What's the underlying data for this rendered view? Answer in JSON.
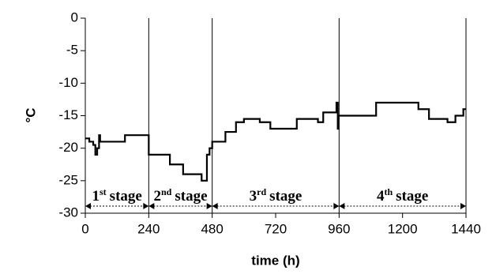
{
  "chart_data": {
    "type": "line",
    "xlabel": "time (h)",
    "ylabel": "°C",
    "x": [
      0,
      15,
      15,
      30,
      30,
      38,
      38,
      45,
      45,
      52,
      52,
      56,
      56,
      150,
      150,
      240,
      240,
      320,
      320,
      370,
      370,
      440,
      440,
      460,
      460,
      470,
      470,
      480,
      480,
      530,
      530,
      570,
      570,
      600,
      600,
      660,
      660,
      700,
      700,
      800,
      800,
      880,
      880,
      900,
      900,
      950,
      950,
      955,
      955,
      958,
      958,
      1100,
      1100,
      1260,
      1260,
      1300,
      1300,
      1370,
      1370,
      1400,
      1400,
      1430,
      1430,
      1440
    ],
    "series": [
      {
        "color": "#000000",
        "values": [
          -18.5,
          -18.5,
          -19,
          -19,
          -19.5,
          -19.5,
          -21,
          -21,
          -20,
          -20,
          -18,
          -18,
          -19,
          -19,
          -18,
          -18,
          -21,
          -21,
          -22.5,
          -22.5,
          -24,
          -24,
          -25,
          -25,
          -21,
          -21,
          -20,
          -20,
          -19,
          -19,
          -17.5,
          -17.5,
          -16,
          -16,
          -15.5,
          -15.5,
          -16,
          -16,
          -17,
          -17,
          -15.5,
          -15.5,
          -16,
          -16,
          -14.5,
          -14.5,
          -13,
          -13,
          -17,
          -17,
          -15,
          -15,
          -13,
          -13,
          -14,
          -14,
          -15.5,
          -15.5,
          -16,
          -16,
          -15,
          -15,
          -14,
          -14
        ]
      }
    ],
    "xlim": [
      0,
      1440
    ],
    "xticks": [
      0,
      240,
      480,
      720,
      960,
      1200,
      1440
    ],
    "ylim": [
      -30,
      0
    ],
    "yticks": [
      0,
      -5,
      -10,
      -15,
      -20,
      -25,
      -30
    ],
    "vlines": [
      240,
      480,
      960,
      1440
    ],
    "stages": [
      {
        "from": 0,
        "to": 240,
        "num": "1",
        "sup": "st",
        "text": "stage"
      },
      {
        "from": 240,
        "to": 480,
        "num": "2",
        "sup": "nd",
        "text": "stage"
      },
      {
        "from": 480,
        "to": 960,
        "num": "3",
        "sup": "rd",
        "text": "stage"
      },
      {
        "from": 960,
        "to": 1440,
        "num": "4",
        "sup": "th",
        "text": "stage"
      }
    ]
  }
}
